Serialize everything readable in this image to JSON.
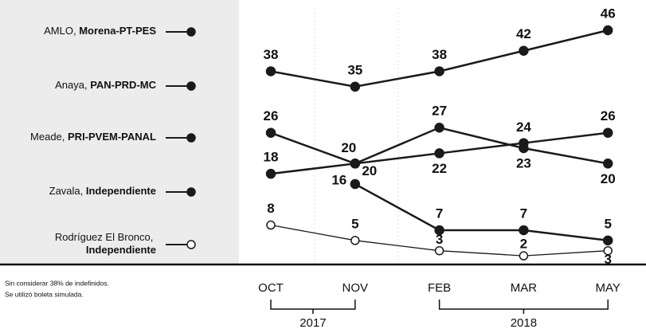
{
  "chart_data": {
    "type": "line",
    "categories": [
      "OCT",
      "NOV",
      "FEB",
      "MAR",
      "MAY"
    ],
    "years": [
      "2017",
      "2017",
      "2018",
      "2018",
      "2018"
    ],
    "ylim": [
      0,
      46
    ],
    "series": [
      {
        "name": "AMLO, Morena-PT-PES",
        "color": "#1a1a1a",
        "values": [
          38,
          35,
          38,
          42,
          46
        ]
      },
      {
        "name": "Anaya, PAN-PRD-MC",
        "color": "#1a1a1a",
        "values": [
          26,
          20,
          27,
          23,
          20
        ]
      },
      {
        "name": "Meade, PRI-PVEM-PANAL",
        "color": "#1a1a1a",
        "values": [
          18,
          20,
          22,
          24,
          26
        ]
      },
      {
        "name": "Zavala, Independiente",
        "color": "#1a1a1a",
        "values": [
          null,
          16,
          7,
          7,
          5
        ]
      },
      {
        "name": "Rodríguez El Bronco, Independiente",
        "color": "#1a1a1a",
        "hollow": true,
        "values": [
          8,
          5,
          3,
          2,
          3
        ]
      }
    ],
    "notes": [
      "Sin considerar 38% de indefinidos.",
      "Se utilizó boleta simulada."
    ]
  }
}
